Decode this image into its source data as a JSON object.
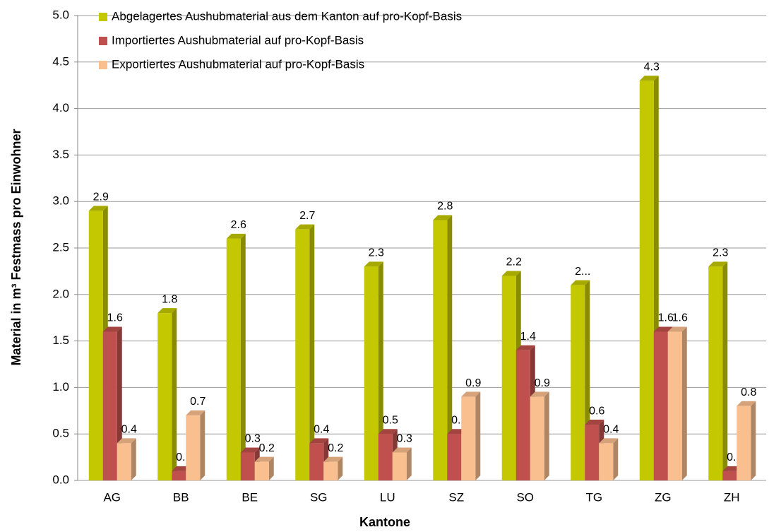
{
  "chart_data": {
    "type": "bar",
    "x_label": "Kantone",
    "y_label": "Material in m³ Festmass pro Einwohner",
    "categories": [
      "AG",
      "BB",
      "BE",
      "SG",
      "LU",
      "SZ",
      "SO",
      "TG",
      "ZG",
      "ZH"
    ],
    "series": [
      {
        "name": "Abgelagertes Aushubmaterial aus dem Kanton auf pro-Kopf-Basis",
        "color": "#c3c800",
        "values": [
          2.9,
          1.8,
          2.6,
          2.7,
          2.3,
          2.8,
          2.2,
          2.1,
          4.3,
          2.3
        ],
        "value_labels": [
          "2.9",
          "1.8",
          "2.6",
          "2.7",
          "2.3",
          "2.8",
          "2.2",
          "2...",
          "4.3",
          "2.3"
        ]
      },
      {
        "name": "Importiertes Aushubmaterial auf pro-Kopf-Basis",
        "color": "#c0504d",
        "values": [
          1.6,
          0.1,
          0.3,
          0.4,
          0.5,
          0.5,
          1.4,
          0.6,
          1.6,
          0.1
        ]
      },
      {
        "name": "Exportiertes Aushubmaterial auf pro-Kopf-Basis",
        "color": "#fabf8f",
        "values": [
          0.4,
          0.7,
          0.2,
          0.2,
          0.3,
          0.9,
          0.9,
          0.4,
          1.6,
          0.8
        ]
      }
    ],
    "ylim": [
      0,
      5
    ],
    "yticks": [
      {
        "value": 0,
        "label": "0.0"
      },
      0.5,
      {
        "value": 1,
        "label": "1.0"
      },
      1.5,
      {
        "value": 2,
        "label": "2.0"
      },
      2.5,
      {
        "value": 3,
        "label": "3.0"
      },
      3.5,
      {
        "value": 4,
        "label": "4.0"
      },
      4.5,
      {
        "value": 5,
        "label": "5.0"
      }
    ],
    "grid": true,
    "legend": "top-left"
  }
}
